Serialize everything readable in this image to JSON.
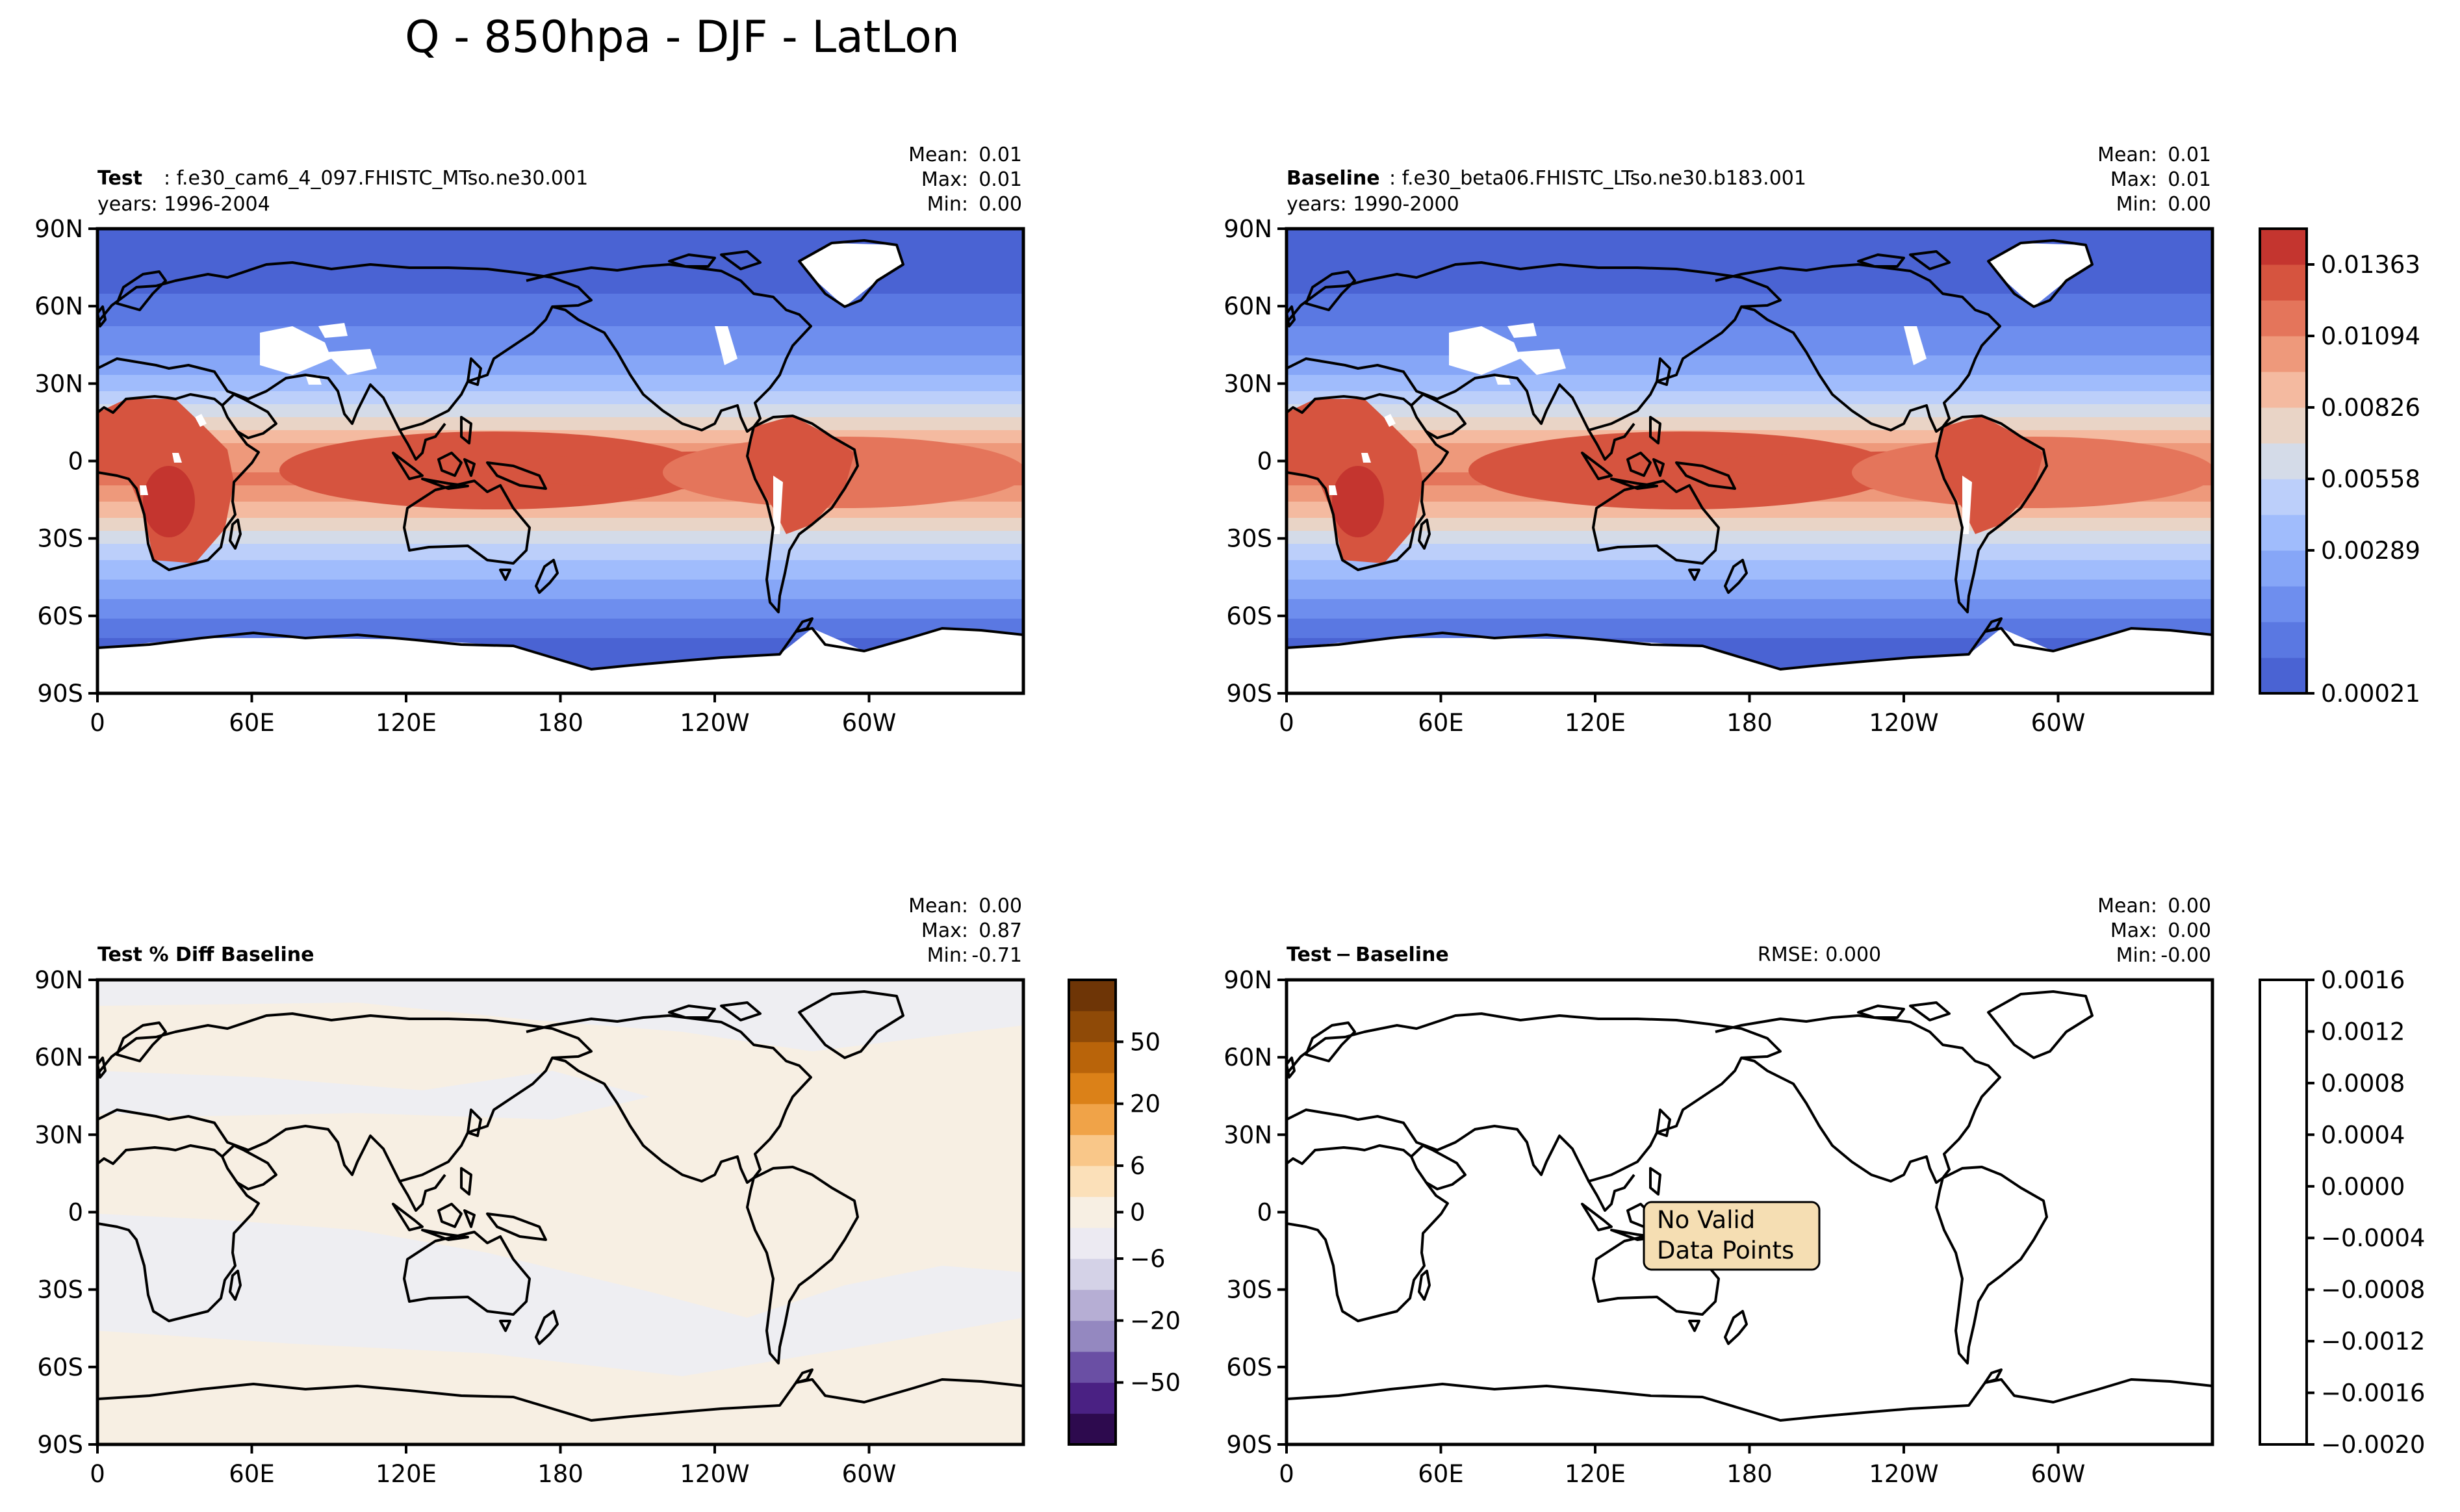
{
  "figure": {
    "title": "Q - 850hpa - DJF - LatLon"
  },
  "axis_ticks": {
    "lat": [
      "90N",
      "60N",
      "30N",
      "0",
      "30S",
      "60S",
      "90S"
    ],
    "lon": [
      "0",
      "60E",
      "120E",
      "180",
      "120W",
      "60W"
    ]
  },
  "colors": {
    "test_base_levels": [
      "#4a63d3",
      "#5a78e2",
      "#6e8eee",
      "#86a6f7",
      "#a0bcfc",
      "#bccffa",
      "#d4dbe8",
      "#e9d4c6",
      "#f4baa0",
      "#ee997b",
      "#e4755b",
      "#d6543f",
      "#c4352f"
    ],
    "land_dry": "#ffffff",
    "diff_neutral_pos": "#f7efe3",
    "diff_neutral_neg": "#eeeef2",
    "diff_levels": [
      "#2d0a4e",
      "#4a2183",
      "#6a4fa4",
      "#9488c0",
      "#b6aed4",
      "#d4d2e7",
      "#eceaf2",
      "#f7efe3",
      "#fbe0b9",
      "#f9c789",
      "#f0a348",
      "#db8118",
      "#b9640a",
      "#8f4a07",
      "#6e3506"
    ],
    "novalid_box": "#f5deb3"
  },
  "chart_data": [
    {
      "panel": "test",
      "type": "heatmap",
      "projection": "latlon",
      "label_bold": "Test",
      "label_rest": ": f.e30_cam6_4_097.FHISTC_MTso.ne30.001",
      "years": "years: 1996-2004",
      "stats": {
        "mean_label": "Mean:",
        "mean": "0.01",
        "max_label": "Max:",
        "max": "0.01",
        "min_label": "Min:",
        "min": "0.00"
      },
      "variable": "Q",
      "level_hpa": 850,
      "season": "DJF"
    },
    {
      "panel": "baseline",
      "type": "heatmap",
      "projection": "latlon",
      "label_bold": "Baseline",
      "label_rest": ": f.e30_beta06.FHISTC_LTso.ne30.b183.001",
      "years": "years: 1990-2000",
      "stats": {
        "mean_label": "Mean:",
        "mean": "0.01",
        "max_label": "Max:",
        "max": "0.01",
        "min_label": "Min:",
        "min": "0.00"
      },
      "colorbar": {
        "ticks": [
          "0.01363",
          "0.01094",
          "0.00826",
          "0.00558",
          "0.00289",
          "0.00021"
        ],
        "range": [
          0.00021,
          0.015
        ]
      }
    },
    {
      "panel": "pct_diff",
      "type": "heatmap",
      "projection": "latlon",
      "label_bold": "Test % Diff Baseline",
      "stats": {
        "mean_label": "Mean:",
        "mean": "0.00",
        "max_label": "Max:",
        "max": "0.87",
        "min_label": "Min:",
        "min": "-0.71"
      },
      "colorbar": {
        "ticks": [
          "50",
          "20",
          "6",
          "0",
          "−6",
          "−20",
          "−50"
        ],
        "range": [
          -100,
          100
        ]
      }
    },
    {
      "panel": "difference",
      "type": "heatmap",
      "projection": "latlon",
      "label_bold": "Test − Baseline",
      "rmse": "RMSE: 0.000",
      "stats": {
        "mean_label": "Mean:",
        "mean": "0.00",
        "max_label": "Max:",
        "max": "0.00",
        "min_label": "Min:",
        "min": "-0.00"
      },
      "no_data_line1": "No Valid",
      "no_data_line2": "Data Points",
      "colorbar": {
        "ticks": [
          "0.0016",
          "0.0012",
          "0.0008",
          "0.0004",
          "0.0000",
          "−0.0004",
          "−0.0008",
          "−0.0012",
          "−0.0016",
          "−0.0020"
        ],
        "range": [
          -0.002,
          0.0016
        ]
      }
    }
  ]
}
